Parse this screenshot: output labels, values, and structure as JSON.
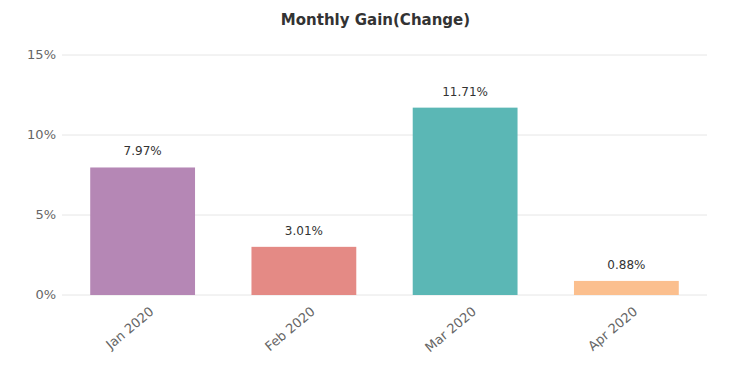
{
  "chart_data": {
    "type": "bar",
    "title": "Monthly Gain(Change)",
    "categories": [
      "Jan 2020",
      "Feb 2020",
      "Mar 2020",
      "Apr 2020"
    ],
    "values": [
      7.97,
      3.01,
      11.71,
      0.88
    ],
    "value_labels": [
      "7.97%",
      "3.01%",
      "11.71%",
      "0.88%"
    ],
    "colors": [
      "#b587b5",
      "#e48a85",
      "#5bb7b5",
      "#fbbf8e"
    ],
    "ylim": [
      0,
      15
    ],
    "yticks": [
      {
        "value": 0,
        "label": "0%"
      },
      {
        "value": 5,
        "label": "5%"
      },
      {
        "value": 10,
        "label": "10%"
      },
      {
        "value": 15,
        "label": "15%"
      }
    ],
    "grid": true,
    "data_labels": true
  }
}
